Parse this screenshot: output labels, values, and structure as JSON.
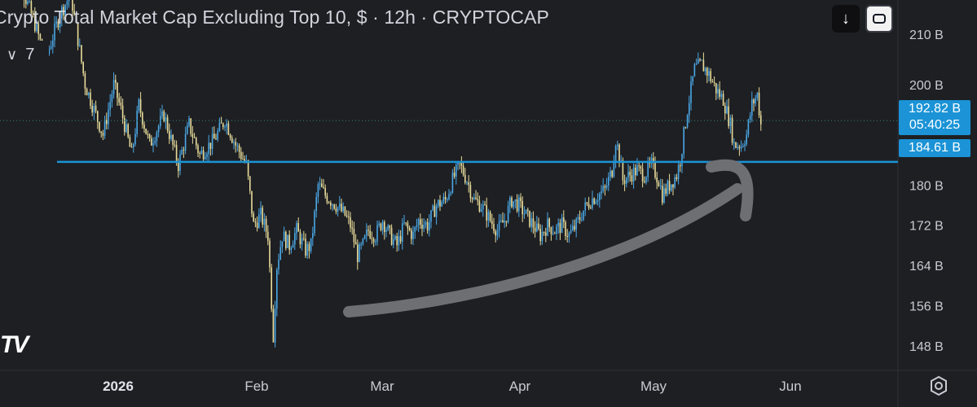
{
  "header": {
    "title": "Crypto Total Market Cap Excluding Top 10, $ · 12h · CRYPTOCAP",
    "collapse_count": "7"
  },
  "icons": {
    "download": "down-arrow-icon",
    "fullscreen": "fullscreen-icon",
    "settings": "gear-icon",
    "collapse": "chevron-down-icon",
    "logo": "tradingview-logo"
  },
  "price_tag": {
    "price": "192.82 B",
    "countdown": "05:40:25"
  },
  "level_tag": {
    "price": "184.61 B"
  },
  "colors": {
    "background": "#1e1f23",
    "up": "#4aa8e6",
    "down": "#e8dc9a",
    "support_line": "#1b93d6",
    "arrow": "#6e6f73",
    "tag": "#1b93d6"
  },
  "chart_data": {
    "type": "candlestick",
    "title": "Crypto Total Market Cap Excluding Top 10, $ · 12h · CRYPTOCAP",
    "y_unit": "B",
    "ylim": [
      145,
      215
    ],
    "y_ticks": [
      "210 B",
      "200 B",
      "180 B",
      "172 B",
      "164 B",
      "156 B",
      "148 B"
    ],
    "y_tick_values": [
      210,
      200,
      180,
      172,
      164,
      156,
      148
    ],
    "x_ticks": [
      "2026",
      "Feb",
      "Mar",
      "Apr",
      "May",
      "Jun"
    ],
    "bold_x_tick": "2026",
    "current_price": 192.82,
    "horizontal_level": 184.61,
    "series": [
      {
        "name": "CRYPTOCAP",
        "close_path": [
          [
            0,
            222
          ],
          [
            4,
            228
          ],
          [
            8,
            218
          ],
          [
            14,
            212
          ],
          [
            20,
            205
          ],
          [
            28,
            214
          ],
          [
            34,
            218
          ],
          [
            42,
            200
          ],
          [
            52,
            190
          ],
          [
            58,
            200
          ],
          [
            62,
            195
          ],
          [
            68,
            186
          ],
          [
            72,
            196
          ],
          [
            78,
            188
          ],
          [
            86,
            194
          ],
          [
            94,
            184
          ],
          [
            100,
            192
          ],
          [
            106,
            186
          ],
          [
            114,
            189
          ],
          [
            120,
            193
          ],
          [
            126,
            188
          ],
          [
            132,
            184
          ],
          [
            136,
            172
          ],
          [
            140,
            174
          ],
          [
            144,
            170
          ],
          [
            147,
            150
          ],
          [
            149,
            164
          ],
          [
            152,
            170
          ],
          [
            156,
            168
          ],
          [
            160,
            171
          ],
          [
            165,
            167
          ],
          [
            168,
            168
          ],
          [
            172,
            180
          ],
          [
            176,
            178
          ],
          [
            182,
            176
          ],
          [
            187,
            174
          ],
          [
            190,
            172
          ],
          [
            194,
            166
          ],
          [
            197,
            168
          ],
          [
            200,
            171
          ],
          [
            204,
            170
          ],
          [
            208,
            173
          ],
          [
            212,
            170
          ],
          [
            216,
            168
          ],
          [
            220,
            172
          ],
          [
            225,
            170
          ],
          [
            228,
            173
          ],
          [
            233,
            172
          ],
          [
            238,
            176
          ],
          [
            243,
            177
          ],
          [
            247,
            181
          ],
          [
            251,
            184
          ],
          [
            255,
            181
          ],
          [
            259,
            177
          ],
          [
            263,
            176
          ],
          [
            268,
            173
          ],
          [
            272,
            171
          ],
          [
            276,
            173
          ],
          [
            280,
            177
          ],
          [
            284,
            176
          ],
          [
            288,
            174
          ],
          [
            292,
            172
          ],
          [
            296,
            170
          ],
          [
            300,
            172
          ],
          [
            304,
            171
          ],
          [
            308,
            172
          ],
          [
            312,
            170
          ],
          [
            316,
            172
          ],
          [
            320,
            175
          ],
          [
            324,
            177
          ],
          [
            328,
            178
          ],
          [
            332,
            179
          ],
          [
            336,
            183
          ],
          [
            338,
            189
          ],
          [
            340,
            186
          ],
          [
            342,
            181
          ],
          [
            346,
            182
          ],
          [
            350,
            183
          ],
          [
            354,
            182
          ],
          [
            358,
            184
          ],
          [
            362,
            181
          ],
          [
            364,
            178
          ],
          [
            368,
            180
          ],
          [
            372,
            182
          ],
          [
            374,
            185
          ],
          [
            378,
            195
          ],
          [
            382,
            203
          ],
          [
            386,
            204
          ],
          [
            390,
            202
          ],
          [
            394,
            199
          ],
          [
            398,
            197
          ],
          [
            402,
            192
          ],
          [
            404,
            188
          ],
          [
            408,
            188
          ],
          [
            411,
            190
          ],
          [
            414,
            196
          ],
          [
            417,
            198
          ],
          [
            419,
            192
          ]
        ]
      }
    ]
  }
}
